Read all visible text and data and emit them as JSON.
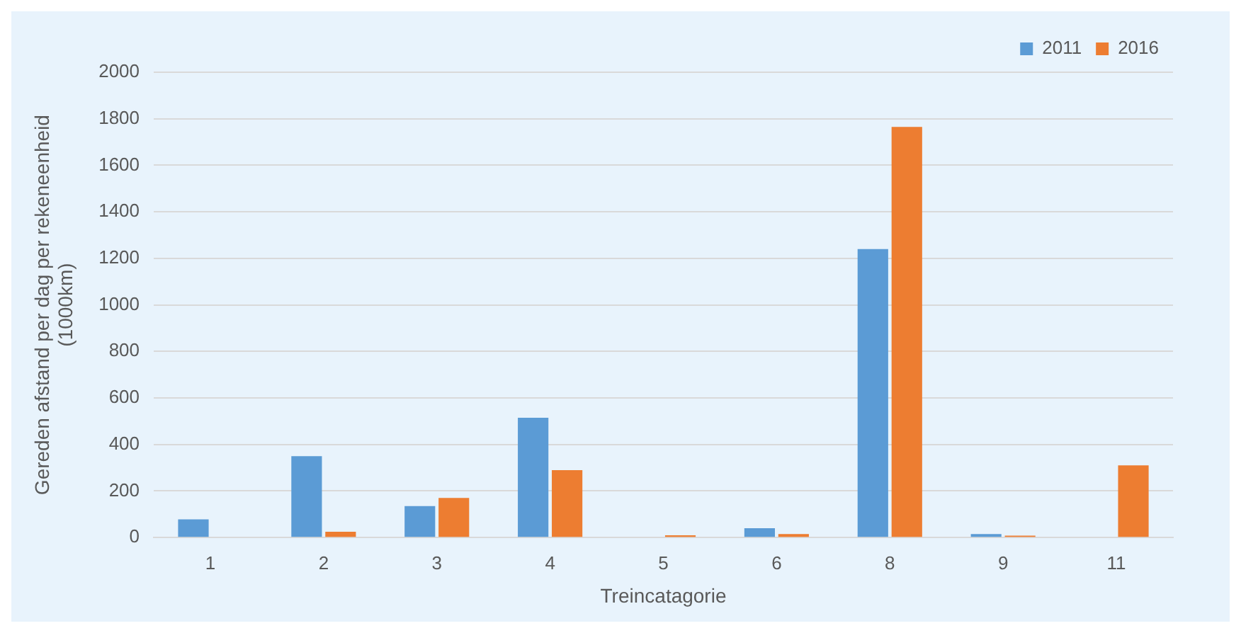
{
  "chart_data": {
    "type": "bar",
    "xlabel": "Treincatagorie",
    "ylabel": "Gereden afstand per dag per rekeneenheid (1000km)",
    "categories": [
      "1",
      "2",
      "3",
      "4",
      "5",
      "6",
      "8",
      "9",
      "11"
    ],
    "series": [
      {
        "name": "2011",
        "color": "#5b9bd5",
        "values": [
          78,
          350,
          135,
          515,
          0,
          40,
          1240,
          15,
          0
        ]
      },
      {
        "name": "2016",
        "color": "#ed7d31",
        "values": [
          0,
          25,
          170,
          290,
          10,
          15,
          1765,
          8,
          310
        ]
      }
    ],
    "ylim": [
      0,
      2000
    ],
    "yticks": [
      0,
      200,
      400,
      600,
      800,
      1000,
      1200,
      1400,
      1600,
      1800,
      2000
    ],
    "grid": "y",
    "legend": "top right"
  }
}
